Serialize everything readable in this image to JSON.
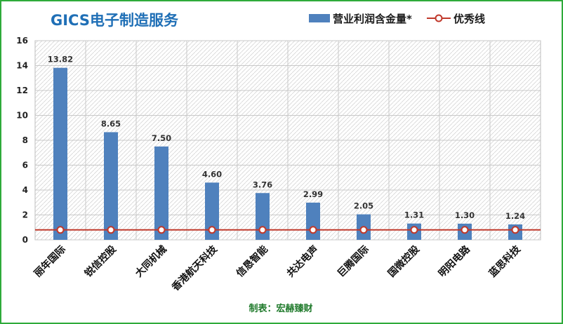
{
  "chart_data": {
    "type": "bar",
    "title": "GICS电子制造服务",
    "categories": [
      "丽年国际",
      "锐信控股",
      "大同机械",
      "香港航天科技",
      "信恳智能",
      "共达电声",
      "巨腾国际",
      "国微控股",
      "明阳电路",
      "蓝思科技"
    ],
    "series": [
      {
        "name": "营业利润含金量*",
        "type": "bar",
        "color": "#4f81bd",
        "values": [
          13.82,
          8.65,
          7.5,
          4.6,
          3.76,
          2.99,
          2.05,
          1.31,
          1.3,
          1.24
        ],
        "labels": [
          "13.82",
          "8.65",
          "7.50",
          "4.60",
          "3.76",
          "2.99",
          "2.05",
          "1.31",
          "1.30",
          "1.24"
        ]
      },
      {
        "name": "优秀线",
        "type": "line",
        "color": "#c0392b",
        "values": [
          0.8,
          0.8,
          0.8,
          0.8,
          0.8,
          0.8,
          0.8,
          0.8,
          0.8,
          0.8
        ]
      }
    ],
    "ylim": [
      0,
      16
    ],
    "yticks": [
      0,
      2,
      4,
      6,
      8,
      10,
      12,
      14,
      16
    ],
    "grid": true,
    "legend_position": "top-right",
    "credit": "制表：宏赫臻财"
  }
}
